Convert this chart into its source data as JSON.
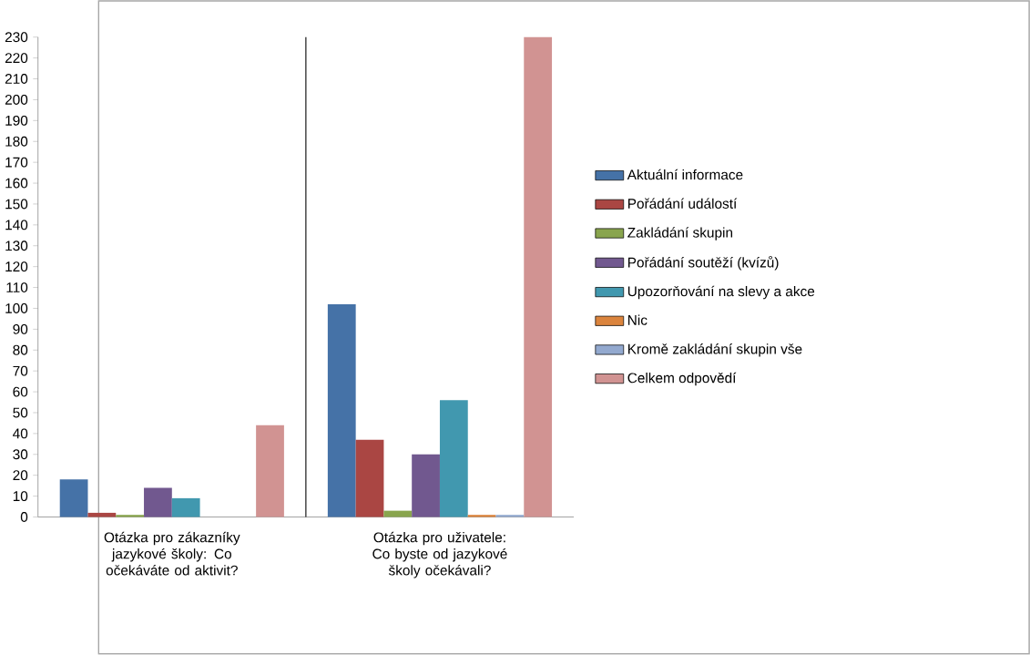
{
  "chart_data": {
    "type": "bar",
    "categories": [
      "Otázka pro zákazníky jazykové školy: Co očekáváte od aktivit?",
      "Otázka pro uživatele: Co byste od jazykové školy očekávali?"
    ],
    "series": [
      {
        "name": "Aktuální informace",
        "color": "#4572a7",
        "values": [
          18,
          102
        ]
      },
      {
        "name": "Pořádání událostí",
        "color": "#aa4643",
        "values": [
          2,
          37
        ]
      },
      {
        "name": "Zakládání skupin",
        "color": "#89a54e",
        "values": [
          1,
          3
        ]
      },
      {
        "name": "Pořádání soutěží (kvízů)",
        "color": "#71588f",
        "values": [
          14,
          30
        ]
      },
      {
        "name": "Upozorňování na slevy a akce",
        "color": "#4198af",
        "values": [
          9,
          56
        ]
      },
      {
        "name": "Nic",
        "color": "#db843d",
        "values": [
          0,
          1
        ]
      },
      {
        "name": "Kromě zakládání skupin vše",
        "color": "#93a9cf",
        "values": [
          0,
          1
        ]
      },
      {
        "name": "Celkem odpovědí",
        "color": "#d19392",
        "values": [
          44,
          230
        ]
      }
    ],
    "ylim": [
      0,
      230
    ],
    "yticks": [
      0,
      10,
      20,
      30,
      40,
      50,
      60,
      70,
      80,
      90,
      100,
      110,
      120,
      130,
      140,
      150,
      160,
      170,
      180,
      190,
      200,
      210,
      220,
      230
    ],
    "grid": "x",
    "legend": "right"
  }
}
